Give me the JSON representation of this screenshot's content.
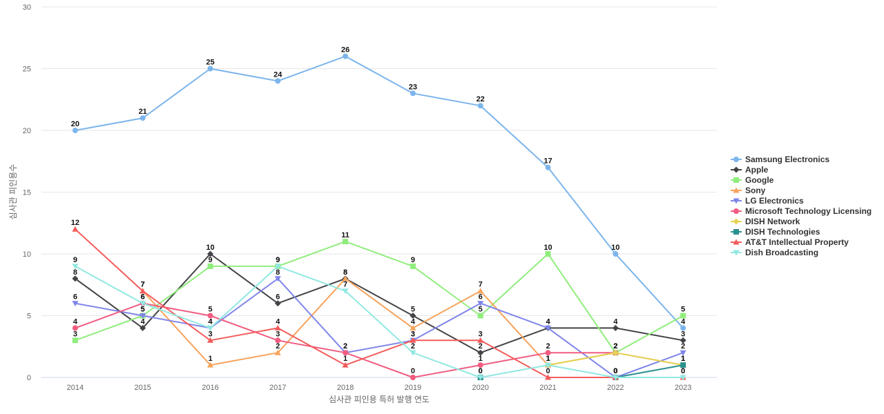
{
  "chart_data": {
    "type": "line",
    "xlabel": "심사관 피인용 특허 발행 연도",
    "ylabel": "심사관 피인용수",
    "ylim": [
      0,
      30
    ],
    "yticks": [
      0,
      5,
      10,
      15,
      20,
      25,
      30
    ],
    "grid": true,
    "legend_position": "right",
    "x": [
      "2014",
      "2015",
      "2016",
      "2017",
      "2018",
      "2019",
      "2020",
      "2021",
      "2022",
      "2023"
    ],
    "series": [
      {
        "name": "Samsung Electronics",
        "color": "#7cb5ec",
        "marker": "circle",
        "values": [
          20,
          21,
          25,
          24,
          26,
          23,
          22,
          17,
          10,
          4
        ]
      },
      {
        "name": "Apple",
        "color": "#434348",
        "marker": "diamond",
        "values": [
          8,
          4,
          10,
          6,
          8,
          5,
          2,
          4,
          4,
          3
        ]
      },
      {
        "name": "Google",
        "color": "#90ed7d",
        "marker": "square",
        "values": [
          3,
          5,
          9,
          9,
          11,
          9,
          5,
          10,
          2,
          5
        ]
      },
      {
        "name": "Sony",
        "color": "#f7a35c",
        "marker": "triangle",
        "values": [
          null,
          7,
          1,
          2,
          8,
          4,
          7,
          1,
          2,
          1
        ]
      },
      {
        "name": "LG Electronics",
        "color": "#8085e9",
        "marker": "triangle-down",
        "values": [
          6,
          5,
          4,
          8,
          2,
          3,
          6,
          4,
          0,
          2
        ]
      },
      {
        "name": "Microsoft Technology Licensing",
        "color": "#f15c80",
        "marker": "circle",
        "values": [
          4,
          6,
          5,
          3,
          2,
          0,
          1,
          2,
          2,
          null
        ]
      },
      {
        "name": "DISH Network",
        "color": "#e4d354",
        "marker": "diamond",
        "values": [
          null,
          null,
          null,
          null,
          null,
          null,
          null,
          1,
          2,
          1
        ]
      },
      {
        "name": "DISH Technologies",
        "color": "#2b908f",
        "marker": "square",
        "values": [
          null,
          null,
          null,
          null,
          null,
          null,
          0,
          null,
          0,
          1
        ]
      },
      {
        "name": "AT&T Intellectual Property",
        "color": "#f45b5b",
        "marker": "triangle",
        "values": [
          12,
          7,
          3,
          4,
          1,
          3,
          3,
          0,
          0,
          0
        ]
      },
      {
        "name": "Dish Broadcasting",
        "color": "#91e8e1",
        "marker": "triangle-down",
        "values": [
          9,
          6,
          4,
          9,
          7,
          2,
          0,
          1,
          0,
          0
        ]
      }
    ]
  }
}
